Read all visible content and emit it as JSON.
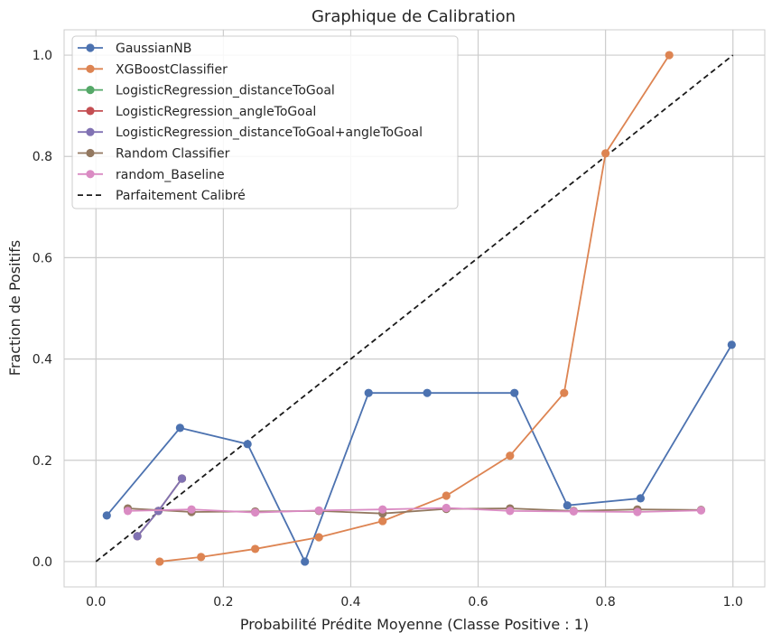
{
  "chart_data": {
    "type": "line",
    "title": "Graphique de Calibration",
    "xlabel": "Probabilité Prédite Moyenne (Classe Positive : 1)",
    "ylabel": "Fraction de Positifs",
    "xlim": [
      -0.05,
      1.05
    ],
    "ylim": [
      -0.05,
      1.05
    ],
    "xticks": [
      0.0,
      0.2,
      0.4,
      0.6,
      0.8,
      1.0
    ],
    "yticks": [
      0.0,
      0.2,
      0.4,
      0.6,
      0.8,
      1.0
    ],
    "xtick_labels": [
      "0.0",
      "0.2",
      "0.4",
      "0.6",
      "0.8",
      "1.0"
    ],
    "ytick_labels": [
      "0.0",
      "0.2",
      "0.4",
      "0.6",
      "0.8",
      "1.0"
    ],
    "grid": true,
    "legend_position": "top-left",
    "series": [
      {
        "name": "GaussianNB",
        "color": "#4c72b0",
        "marker": "circle",
        "x": [
          0.017,
          0.132,
          0.238,
          0.328,
          0.428,
          0.52,
          0.657,
          0.74,
          0.855,
          0.998
        ],
        "y": [
          0.091,
          0.264,
          0.232,
          0.0,
          0.333,
          0.333,
          0.333,
          0.111,
          0.125,
          0.428
        ]
      },
      {
        "name": "XGBoostClassifier",
        "color": "#dd8452",
        "marker": "circle",
        "x": [
          0.1,
          0.165,
          0.25,
          0.35,
          0.45,
          0.55,
          0.65,
          0.735,
          0.8,
          0.9
        ],
        "y": [
          0.0,
          0.009,
          0.025,
          0.048,
          0.08,
          0.13,
          0.209,
          0.333,
          0.806,
          1.0
        ]
      },
      {
        "name": "LogisticRegression_distanceToGoal",
        "color": "#55a868",
        "marker": "circle",
        "x": [
          0.065,
          0.098,
          0.135
        ],
        "y": [
          0.05,
          0.1,
          0.164
        ]
      },
      {
        "name": "LogisticRegression_angleToGoal",
        "color": "#c44e52",
        "marker": "circle",
        "x": [
          0.065,
          0.098,
          0.135
        ],
        "y": [
          0.05,
          0.1,
          0.164
        ]
      },
      {
        "name": "LogisticRegression_distanceToGoal+angleToGoal",
        "color": "#8172b3",
        "marker": "circle",
        "x": [
          0.065,
          0.098,
          0.135
        ],
        "y": [
          0.05,
          0.1,
          0.164
        ]
      },
      {
        "name": "Random Classifier",
        "color": "#937860",
        "marker": "circle",
        "x": [
          0.05,
          0.15,
          0.25,
          0.35,
          0.45,
          0.55,
          0.65,
          0.75,
          0.85,
          0.95
        ],
        "y": [
          0.105,
          0.098,
          0.099,
          0.1,
          0.095,
          0.104,
          0.105,
          0.1,
          0.103,
          0.102
        ]
      },
      {
        "name": "random_Baseline",
        "color": "#da8bc3",
        "marker": "circle",
        "x": [
          0.05,
          0.15,
          0.25,
          0.35,
          0.45,
          0.55,
          0.65,
          0.75,
          0.85,
          0.95
        ],
        "y": [
          0.1,
          0.103,
          0.097,
          0.101,
          0.103,
          0.106,
          0.1,
          0.099,
          0.098,
          0.101
        ]
      },
      {
        "name": "Parfaitement Calibré",
        "color": "#1a1a1a",
        "marker": "none",
        "dashed": true,
        "x": [
          0.0,
          1.0
        ],
        "y": [
          0.0,
          1.0
        ]
      }
    ]
  }
}
